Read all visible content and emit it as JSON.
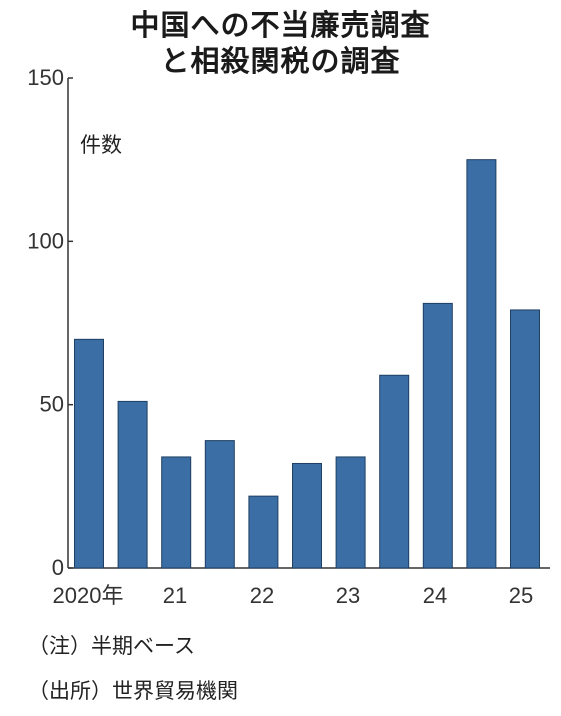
{
  "chart_data": {
    "type": "bar",
    "title": "中国への不当廉売調査",
    "subtitle": "と相殺関税の調査",
    "ylabel": "件数",
    "xlabel": "",
    "ylim": [
      0,
      150
    ],
    "yticks": [
      0,
      50,
      100,
      150
    ],
    "xtick_labels": [
      "2020年",
      "21",
      "22",
      "23",
      "24",
      "25"
    ],
    "categories": [
      "2020H1",
      "2020H2",
      "2021H1",
      "2021H2",
      "2022H1",
      "2022H2",
      "2023H1",
      "2023H2",
      "2024H1",
      "2024H2",
      "2025H1"
    ],
    "values": [
      70,
      51,
      34,
      39,
      22,
      32,
      34,
      59,
      81,
      125,
      79
    ],
    "bar_color": "#3a6ea5",
    "grid": false
  },
  "notes": {
    "note1": "（注）半期ベース",
    "note2": "（出所）世界貿易機関"
  }
}
